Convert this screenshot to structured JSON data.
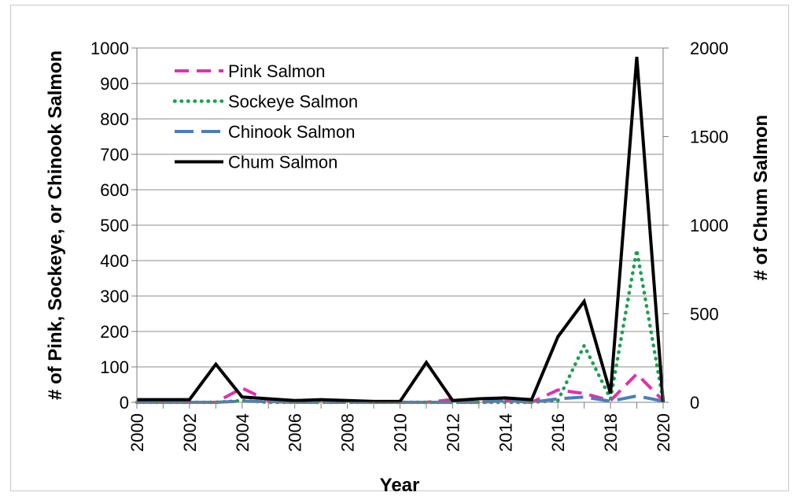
{
  "chart_data": {
    "type": "line",
    "xlabel": "Year",
    "ylabel_left": "# of Pink, Sockeye, or Chinook Salmon",
    "ylabel_right": "# of Chum Salmon",
    "x": [
      2000,
      2001,
      2002,
      2003,
      2004,
      2005,
      2006,
      2007,
      2008,
      2009,
      2010,
      2011,
      2012,
      2013,
      2014,
      2015,
      2016,
      2017,
      2018,
      2019,
      2020
    ],
    "x_ticks": [
      "2000",
      "2002",
      "2004",
      "2006",
      "2008",
      "2010",
      "2012",
      "2014",
      "2016",
      "2018",
      "2020"
    ],
    "ylim_left": [
      0,
      1000
    ],
    "y_ticks_left": [
      "0",
      "100",
      "200",
      "300",
      "400",
      "500",
      "600",
      "700",
      "800",
      "900",
      "1000"
    ],
    "ylim_right": [
      0,
      2000
    ],
    "y_ticks_right": [
      "0",
      "500",
      "1000",
      "1500",
      "2000"
    ],
    "grid": "horizontal",
    "legend_position": "top-left",
    "series": [
      {
        "name": "Pink Salmon",
        "axis": "left",
        "color": "#e030b0",
        "style": "dashed",
        "values": [
          0,
          0,
          0,
          0,
          40,
          5,
          0,
          3,
          0,
          0,
          0,
          0,
          8,
          0,
          5,
          0,
          35,
          25,
          5,
          80,
          5
        ]
      },
      {
        "name": "Sockeye Salmon",
        "axis": "left",
        "color": "#1aa050",
        "style": "dotted",
        "values": [
          0,
          0,
          0,
          0,
          5,
          0,
          0,
          0,
          0,
          0,
          0,
          0,
          0,
          0,
          0,
          0,
          5,
          160,
          10,
          430,
          5
        ]
      },
      {
        "name": "Chinook Salmon",
        "axis": "left",
        "color": "#4a7ebb",
        "style": "dashed-long",
        "values": [
          0,
          0,
          0,
          0,
          3,
          2,
          0,
          0,
          0,
          0,
          0,
          0,
          0,
          0,
          5,
          0,
          10,
          15,
          3,
          18,
          3
        ]
      },
      {
        "name": "Chum Salmon",
        "axis": "right",
        "color": "#000000",
        "style": "solid",
        "values": [
          15,
          15,
          15,
          215,
          30,
          20,
          10,
          15,
          10,
          5,
          5,
          225,
          10,
          20,
          25,
          15,
          370,
          570,
          50,
          1950,
          0
        ]
      }
    ]
  }
}
